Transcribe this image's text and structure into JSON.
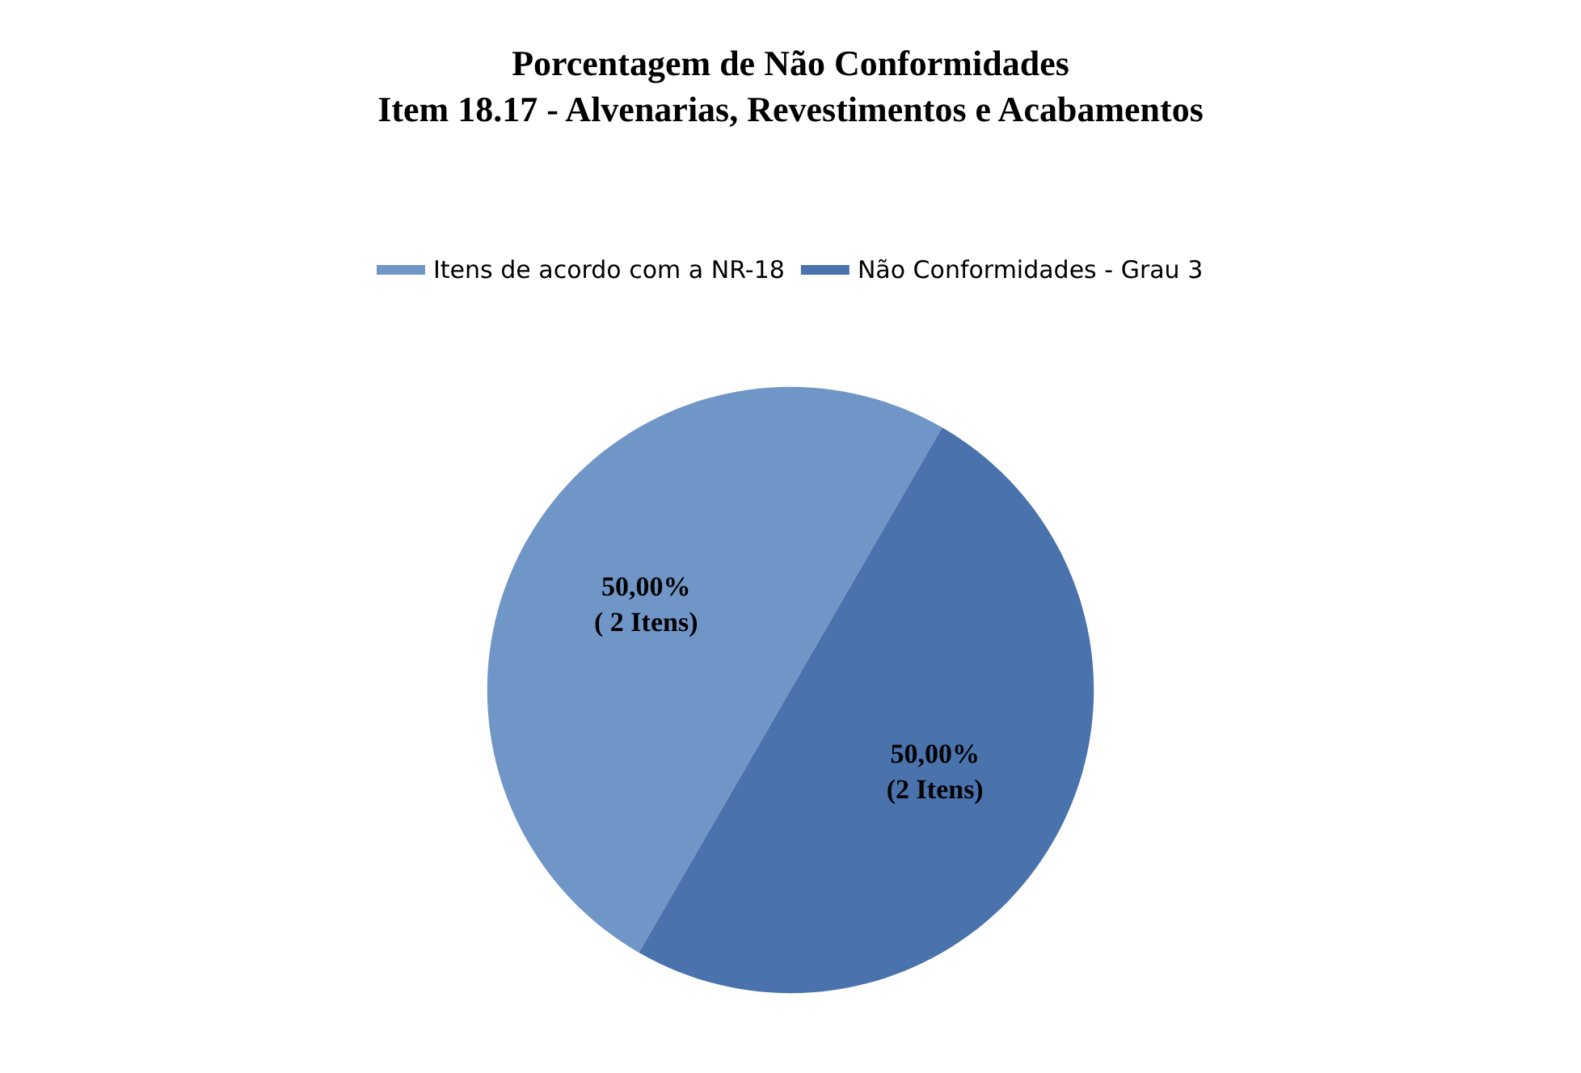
{
  "chart_data": {
    "type": "pie",
    "title": "Porcentagem de Não Conformidades\nItem 18.17 - Alvenarias, Revestimentos e Acabamentos",
    "categories": [
      "Itens de acordo com a NR-18",
      "Não Conformidades - Grau 3"
    ],
    "values": [
      50,
      50
    ],
    "colors": [
      "#7096c8",
      "#4a72ad"
    ],
    "value_labels": [
      "50,00%\n( 2 Itens)",
      "50,00%\n(2 Itens)"
    ],
    "legend": "top"
  }
}
